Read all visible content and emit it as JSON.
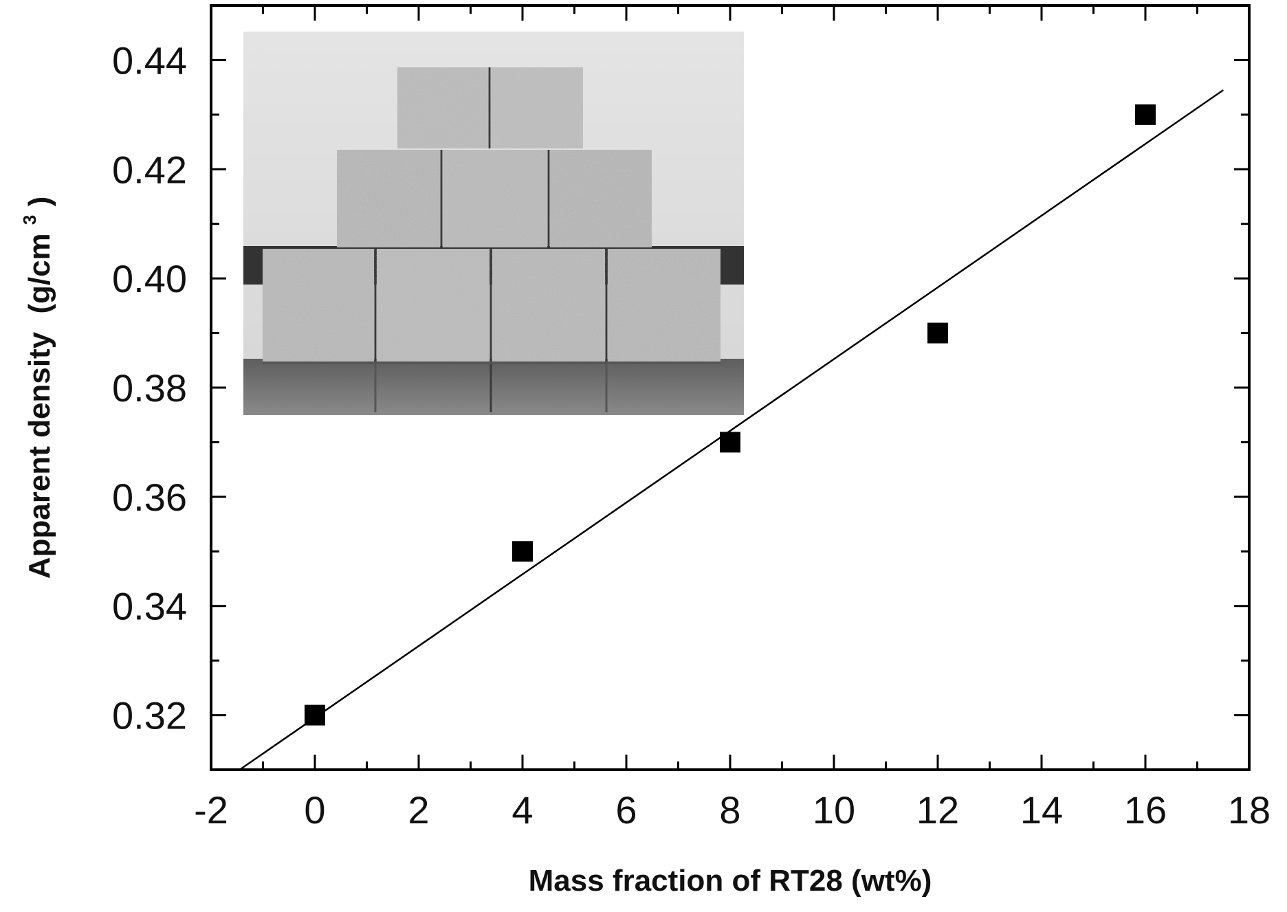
{
  "chart_data": {
    "type": "scatter",
    "title": "",
    "xlabel": "Mass fraction of RT28 (wt%)",
    "ylabel": "Apparent density",
    "ylabel_unit": "(g/cm",
    "ylabel_unit_sup": "3",
    "ylabel_unit_close": ")",
    "xlim": [
      -2,
      18
    ],
    "ylim": [
      0.31,
      0.45
    ],
    "x_ticks": [
      -2,
      0,
      2,
      4,
      6,
      8,
      10,
      12,
      14,
      16,
      18
    ],
    "x_tick_labels": [
      "-2",
      "0",
      "2",
      "4",
      "6",
      "8",
      "10",
      "12",
      "14",
      "16",
      "18"
    ],
    "y_ticks": [
      0.32,
      0.34,
      0.36,
      0.38,
      0.4,
      0.42,
      0.44
    ],
    "y_tick_labels": [
      "0.32",
      "0.34",
      "0.36",
      "0.38",
      "0.40",
      "0.42",
      "0.44"
    ],
    "grid": false,
    "points": [
      {
        "x": 0,
        "y": 0.32
      },
      {
        "x": 4,
        "y": 0.35
      },
      {
        "x": 8,
        "y": 0.37
      },
      {
        "x": 12,
        "y": 0.39
      },
      {
        "x": 16,
        "y": 0.43
      }
    ],
    "fit_line": {
      "x": [
        -1.45,
        17.5
      ],
      "y": [
        0.31,
        0.4345
      ]
    },
    "marker_color": "#000000",
    "inset_image": "photo of stacked gray concrete blocks (3 rows: 4, 3, 2 blocks)"
  }
}
